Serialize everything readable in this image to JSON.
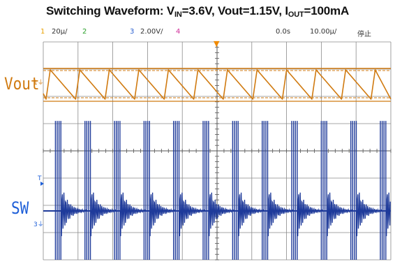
{
  "chart_data": {
    "type": "line",
    "title": {
      "prefix": "Switching Waveform: V",
      "vin_sub": "IN",
      "vin_val": "=3.6V, Vout=1.15V, I",
      "iout_sub": "OUT",
      "iout_val": "=100mA"
    },
    "status_bar": {
      "ch1_num": "1",
      "ch1_scale": "20µ/",
      "ch2_num": "2",
      "ch3_num": "3",
      "ch3_scale": "2.00V/",
      "ch4_num": "4",
      "time_offset": "0.0s",
      "time_scale": "10.00µ/",
      "run_state": "停止"
    },
    "series": [
      {
        "name": "Vout",
        "color": "#d07a10",
        "ripple_periods": 10,
        "peaks_x_div": [
          0.2,
          1.05,
          1.9,
          2.75,
          3.6,
          4.45,
          5.3,
          6.15,
          7.0,
          7.85,
          8.7,
          9.55
        ]
      },
      {
        "name": "SW",
        "color": "#1e3a9a",
        "burst_x_div": [
          0.45,
          1.3,
          2.15,
          3.0,
          3.85,
          4.7,
          5.55,
          6.4,
          7.25,
          8.1,
          8.95,
          9.8
        ]
      }
    ],
    "grid": true,
    "x_divisions": 10,
    "y_divisions": 8,
    "markers": {
      "trigger": "▼",
      "ch1_ground": "1⏚",
      "ch3_ground": "3⏚",
      "trig_level": "T"
    },
    "colors": {
      "vout": "#d07a10",
      "sw": "#1e3a9a",
      "grid": "#8a8a8a"
    }
  },
  "labels": {
    "vout": "Vout",
    "sw": "SW"
  }
}
